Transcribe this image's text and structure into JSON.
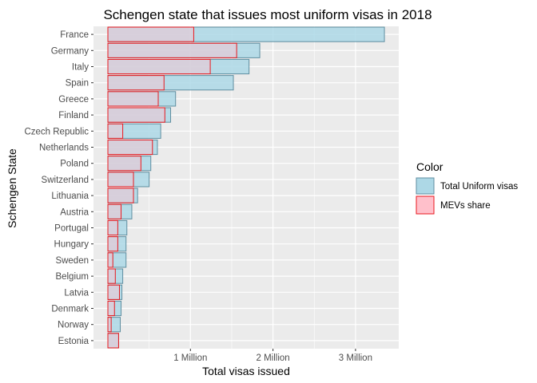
{
  "chart_data": {
    "type": "bar",
    "orientation": "horizontal",
    "title": "Schengen state that issues most uniform visas in 2018",
    "xlabel": "Total visas issued",
    "ylabel": "Schengen State",
    "xlim": [
      0,
      3500000
    ],
    "xticks": [
      1000000,
      2000000,
      3000000
    ],
    "xtick_labels": [
      "1 Million",
      "2 Million",
      "3 Million"
    ],
    "grid": true,
    "legend_position": "right",
    "categories": [
      "France",
      "Germany",
      "Italy",
      "Spain",
      "Greece",
      "Finland",
      "Czech Republic",
      "Netherlands",
      "Poland",
      "Switzerland",
      "Lithuania",
      "Austria",
      "Portugal",
      "Hungary",
      "Sweden",
      "Belgium",
      "Latvia",
      "Denmark",
      "Norway",
      "Estonia"
    ],
    "series": [
      {
        "name": "Total Uniform visas",
        "fill": "#add8e6",
        "stroke": "#5f8ea0",
        "values": [
          3350000,
          1840000,
          1710000,
          1520000,
          820000,
          760000,
          640000,
          600000,
          520000,
          500000,
          360000,
          290000,
          230000,
          220000,
          220000,
          180000,
          170000,
          160000,
          150000,
          130000
        ]
      },
      {
        "name": "MEVs share",
        "fill": "#ffc0cb",
        "stroke": "#e8191f",
        "values": [
          1040000,
          1560000,
          1240000,
          680000,
          610000,
          690000,
          180000,
          540000,
          400000,
          310000,
          310000,
          160000,
          120000,
          120000,
          60000,
          90000,
          140000,
          80000,
          40000,
          130000
        ]
      }
    ],
    "legend": {
      "title": "Color",
      "entries": [
        "Total Uniform visas",
        "MEVs share"
      ]
    }
  }
}
